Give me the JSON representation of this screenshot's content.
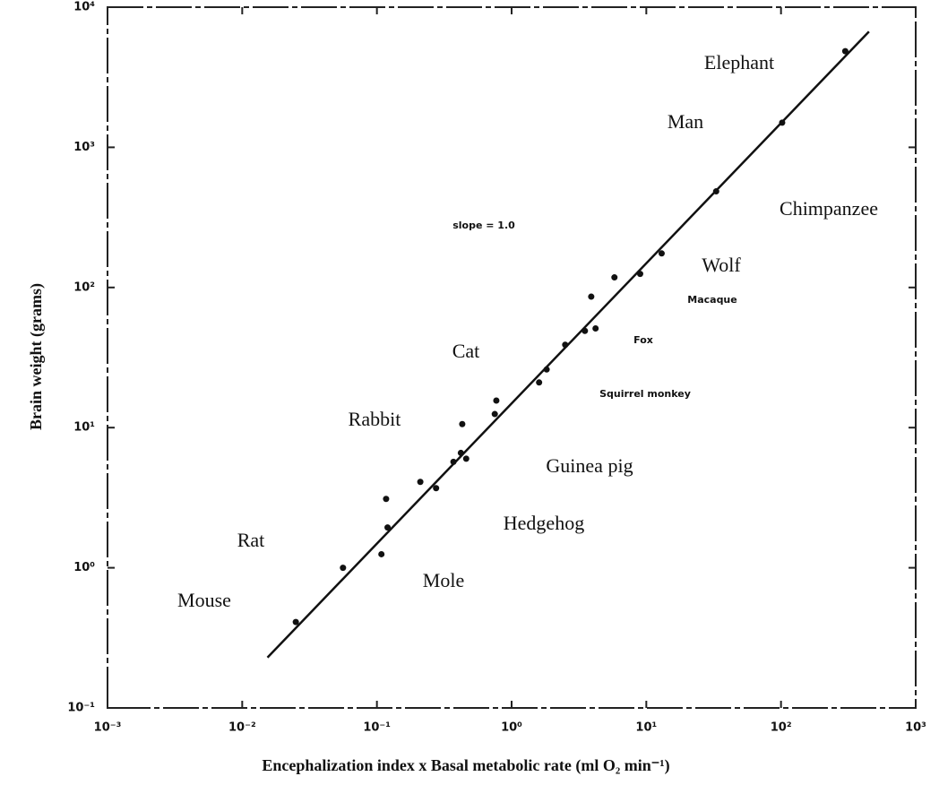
{
  "chart_data": {
    "type": "scatter",
    "x_label": "Encephalization index x Basal metabolic rate  (ml O₂ min⁻¹)",
    "y_label": "Brain weight (grams)",
    "log_x": true,
    "log_y": true,
    "color": "#111111",
    "x": [
      0.025,
      0.056,
      0.108,
      0.12,
      0.117,
      0.21,
      0.275,
      0.37,
      0.42,
      0.46,
      0.43,
      0.75,
      0.77,
      1.6,
      1.82,
      2.5,
      3.5,
      4.2,
      3.9,
      5.8,
      9,
      13,
      33,
      102,
      300
    ],
    "values": [
      0.41,
      1.0,
      1.25,
      1.94,
      3.1,
      4.1,
      3.7,
      5.7,
      6.6,
      6,
      10.6,
      12.5,
      15.6,
      21,
      26,
      39,
      49,
      51,
      86,
      118,
      125,
      175,
      485,
      1500,
      4850
    ],
    "line": {
      "x": [
        0.0154,
        450
      ],
      "values": [
        0.229,
        6700
      ]
    },
    "xlim": [
      0.001,
      1000
    ],
    "ylim": [
      0.1,
      10000
    ],
    "xticks": [
      {
        "value": 0.001,
        "label": "10⁻³"
      },
      {
        "value": 0.01,
        "label": "10⁻²"
      },
      {
        "value": 0.1,
        "label": "10⁻¹"
      },
      {
        "value": 1,
        "label": "10⁰"
      },
      {
        "value": 10,
        "label": "10¹"
      },
      {
        "value": 100,
        "label": "10²"
      },
      {
        "value": 1000,
        "label": "10³"
      }
    ],
    "yticks": [
      {
        "value": 0.1,
        "label": "10⁻¹"
      },
      {
        "value": 1,
        "label": "10⁰"
      },
      {
        "value": 10,
        "label": "10¹"
      },
      {
        "value": 100,
        "label": "10²"
      },
      {
        "value": 1000,
        "label": "10³"
      },
      {
        "value": 10000,
        "label": "10⁴"
      }
    ],
    "annotations": [
      "Elephant",
      "Man",
      "Chimpanzee",
      "Wolf",
      "Macaque",
      "Fox",
      "Squirrel monkey",
      "Cat",
      "Rabbit",
      "Guinea pig",
      "Hedgehog",
      "Mole",
      "Rat",
      "Mouse",
      "slope = 1.0"
    ]
  }
}
